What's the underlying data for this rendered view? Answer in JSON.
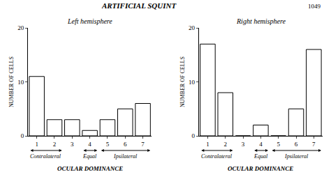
{
  "title": "ARTIFICIAL SQUINT",
  "annotations": [
    {
      "text": "1049"
    }
  ],
  "chart_data": [
    {
      "type": "bar",
      "title": "Left hemisphere",
      "xlabel": "OCULAR DOMINANCE",
      "ylabel": "NUMBER OF CELLS",
      "categories": [
        1,
        2,
        3,
        4,
        5,
        6,
        7
      ],
      "values": [
        11,
        3,
        3,
        1,
        3,
        5,
        6
      ],
      "color": "white",
      "ylim": [
        0,
        20
      ],
      "yticks": [
        0,
        10,
        20
      ],
      "grid": false,
      "annotations": [
        {
          "text": "Contralateral",
          "from": 1,
          "to": 2
        },
        {
          "text": "Equal",
          "from": 4,
          "to": 4
        },
        {
          "text": "Ipsilateral",
          "from": 5,
          "to": 7
        }
      ]
    },
    {
      "type": "bar",
      "title": "Right hemisphere",
      "xlabel": "OCULAR DOMINANCE",
      "ylabel": "NUMBER OF CELLS",
      "categories": [
        1,
        2,
        3,
        4,
        5,
        6,
        7
      ],
      "values": [
        17,
        8,
        0,
        2,
        0,
        5,
        16
      ],
      "color": "white",
      "ylim": [
        0,
        20
      ],
      "yticks": [
        0,
        10,
        20
      ],
      "grid": false,
      "annotations": [
        {
          "text": "Contralateral",
          "from": 1,
          "to": 2
        },
        {
          "text": "Equal",
          "from": 4,
          "to": 4
        },
        {
          "text": "Ipsilateral",
          "from": 5,
          "to": 7
        }
      ]
    }
  ]
}
